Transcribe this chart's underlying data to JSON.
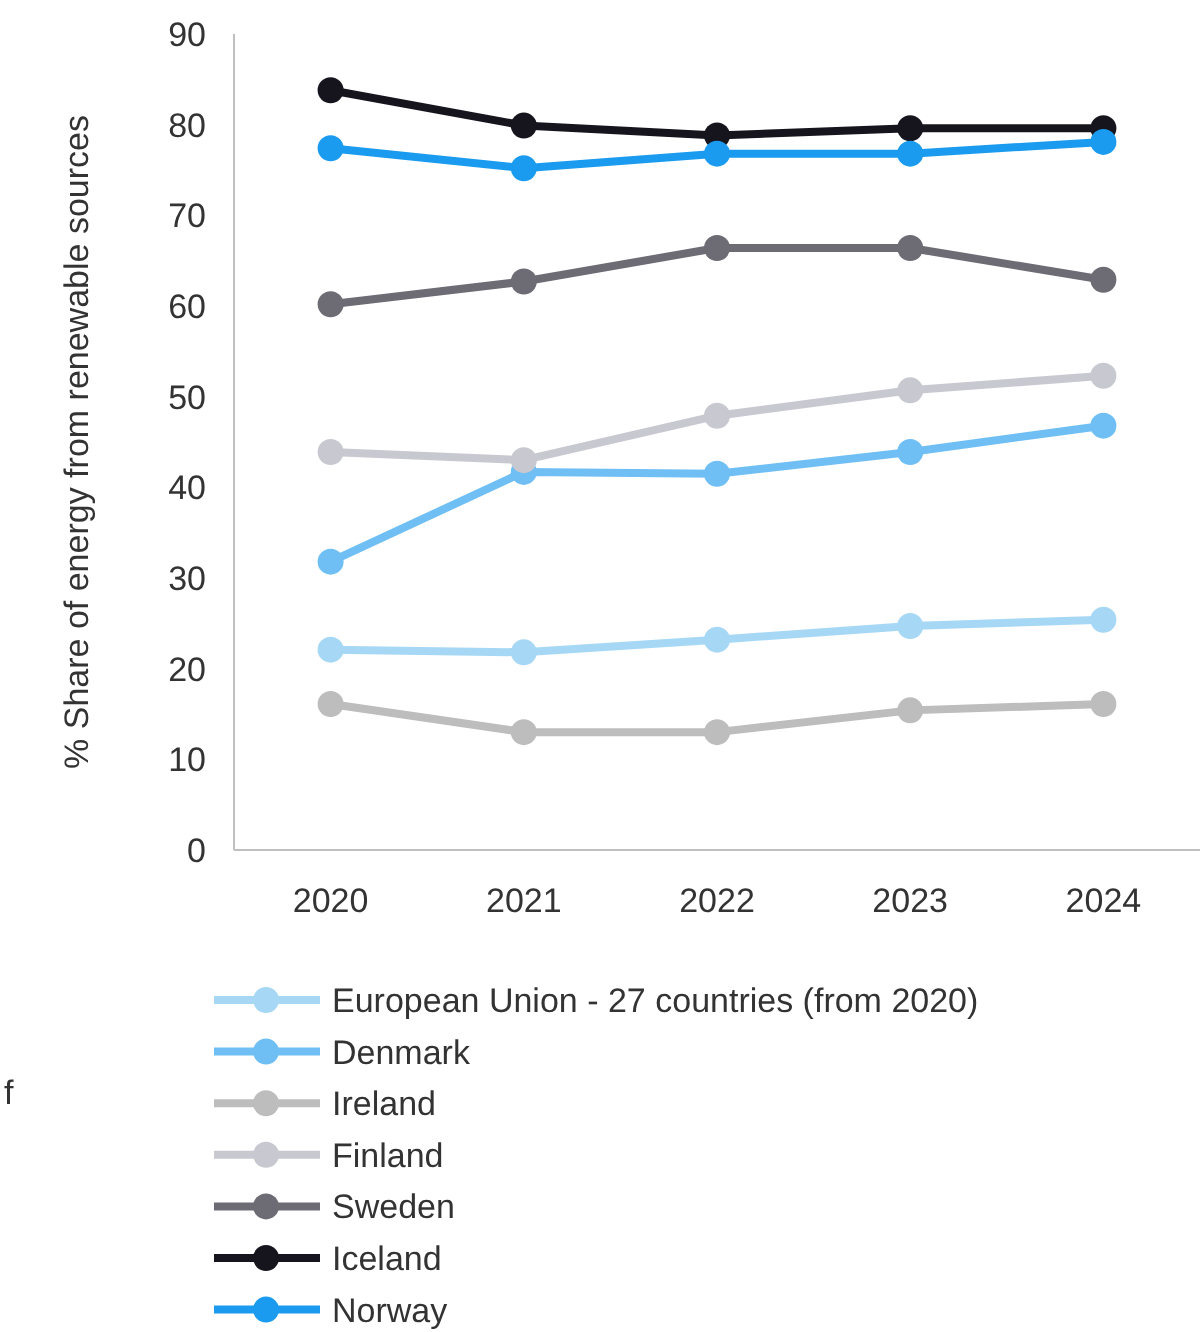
{
  "chart_data": {
    "type": "line",
    "ylabel": "% Share of energy from renewable sources",
    "categories": [
      "2020",
      "2021",
      "2022",
      "2023",
      "2024"
    ],
    "ylim": [
      0,
      90
    ],
    "yticks": [
      0,
      10,
      20,
      30,
      40,
      50,
      60,
      70,
      80,
      90
    ],
    "grid": false,
    "legend": "bottom",
    "marker": "circle",
    "line_style": "solid",
    "annotations": [
      "f"
    ],
    "series": [
      {
        "name": "European Union - 27 countries (from 2020)",
        "color": "#a6d8f5",
        "values": [
          22.1,
          21.8,
          23.2,
          24.7,
          25.4
        ]
      },
      {
        "name": "Denmark",
        "color": "#6fbff5",
        "values": [
          31.8,
          41.7,
          41.5,
          43.9,
          46.8
        ]
      },
      {
        "name": "Ireland",
        "color": "#bdbdbd",
        "values": [
          16.1,
          13.0,
          13.0,
          15.4,
          16.1
        ]
      },
      {
        "name": "Finland",
        "color": "#c8c8d0",
        "values": [
          43.9,
          43.0,
          47.9,
          50.7,
          52.3
        ]
      },
      {
        "name": "Sweden",
        "color": "#6d6b73",
        "values": [
          60.2,
          62.7,
          66.4,
          66.4,
          62.9
        ]
      },
      {
        "name": "Iceland",
        "color": "#16151d",
        "values": [
          83.8,
          79.9,
          78.8,
          79.6,
          79.6
        ]
      },
      {
        "name": "Norway",
        "color": "#1a9bef",
        "values": [
          77.4,
          75.2,
          76.8,
          76.8,
          78.1
        ]
      }
    ]
  }
}
